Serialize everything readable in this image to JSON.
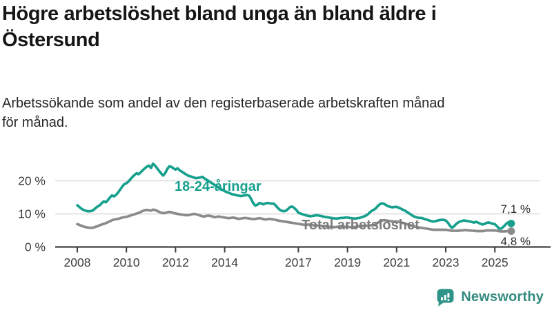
{
  "header": {
    "title": "Högre arbetslöshet bland unga än bland äldre i Östersund",
    "title_line1": "Högre arbetslöshet bland unga än bland äldre i",
    "title_line2": "Östersund",
    "subtitle_line1": "Arbetssökande som andel av den registerbaserade arbetskraften månad",
    "subtitle_line2": "för månad."
  },
  "chart_data": {
    "type": "line",
    "title": "Högre arbetslöshet bland unga än bland äldre i Östersund",
    "subtitle": "Arbetssökande som andel av den registerbaserade arbetskraften månad för månad.",
    "frequency": "monthly",
    "x_start": "2008-01",
    "x_end": "2025-09",
    "unit": "%",
    "ylim": [
      0,
      26
    ],
    "grid": "horizontal",
    "y_ticks": [
      0,
      10,
      20
    ],
    "y_tick_labels": [
      "0 %",
      "10 %",
      "20 %"
    ],
    "x_tick_years": [
      2008,
      2010,
      2012,
      2014,
      2017,
      2019,
      2021,
      2023,
      2025
    ],
    "x_tick_labels": [
      "2008",
      "2010",
      "2012",
      "2014",
      "2017",
      "2019",
      "2021",
      "2023",
      "2025"
    ],
    "series": [
      {
        "name": "18-24-åringar",
        "color": "#17a08e",
        "end_label": "7,1 %",
        "last_value": 7.1,
        "values": [
          12.6,
          12.1,
          11.6,
          11.2,
          11.0,
          10.8,
          10.8,
          10.9,
          11.2,
          11.8,
          12.3,
          12.6,
          13.3,
          13.8,
          13.5,
          14.2,
          15.0,
          15.6,
          15.3,
          15.8,
          16.5,
          17.4,
          18.3,
          19.0,
          19.3,
          19.8,
          20.5,
          21.2,
          21.8,
          22.3,
          22.0,
          22.6,
          23.2,
          23.8,
          24.3,
          24.6,
          23.9,
          25.2,
          24.6,
          23.8,
          23.0,
          22.2,
          21.6,
          22.4,
          23.6,
          24.4,
          24.2,
          23.8,
          23.4,
          23.8,
          23.2,
          22.8,
          22.4,
          22.0,
          21.6,
          21.4,
          21.2,
          21.0,
          20.8,
          20.9,
          21.0,
          21.2,
          20.8,
          20.4,
          20.0,
          19.6,
          19.2,
          18.8,
          18.4,
          18.0,
          17.6,
          17.2,
          16.9,
          16.6,
          16.4,
          16.1,
          15.9,
          15.8,
          15.6,
          15.5,
          15.4,
          15.5,
          15.6,
          15.7,
          15.5,
          14.4,
          13.2,
          12.5,
          12.8,
          13.3,
          13.1,
          12.9,
          13.2,
          13.3,
          13.2,
          13.1,
          13.1,
          12.5,
          11.8,
          11.2,
          10.9,
          10.8,
          11.0,
          11.5,
          12.1,
          12.2,
          11.8,
          11.2,
          10.4,
          10.1,
          9.9,
          9.7,
          9.5,
          9.4,
          9.3,
          9.4,
          9.5,
          9.6,
          9.5,
          9.4,
          9.2,
          9.1,
          9.0,
          8.9,
          8.8,
          8.7,
          8.6,
          8.6,
          8.7,
          8.8,
          8.8,
          8.9,
          8.9,
          8.8,
          8.7,
          8.6,
          8.6,
          8.7,
          8.8,
          9.0,
          9.2,
          9.5,
          9.9,
          10.5,
          11.0,
          11.3,
          11.8,
          12.5,
          13.0,
          13.2,
          13.0,
          12.6,
          12.3,
          12.1,
          12.0,
          12.1,
          12.1,
          11.9,
          11.6,
          11.3,
          11.0,
          10.6,
          10.2,
          9.8,
          9.4,
          9.1,
          8.9,
          8.8,
          8.8,
          8.6,
          8.4,
          8.2,
          8.0,
          7.8,
          7.7,
          7.8,
          8.0,
          8.1,
          8.2,
          8.2,
          8.0,
          7.4,
          6.5,
          5.8,
          6.2,
          6.9,
          7.4,
          7.7,
          7.9,
          8.0,
          7.9,
          7.8,
          7.7,
          7.5,
          7.4,
          7.6,
          7.3,
          7.0,
          6.8,
          7.0,
          7.3,
          7.4,
          7.2,
          7.0,
          6.9,
          6.3,
          5.6,
          5.5,
          6.0,
          6.6,
          7.3,
          7.5,
          7.1
        ]
      },
      {
        "name": "Total arbetslöshet",
        "color": "#8b8b8b",
        "label_color": "#7b7b7b",
        "end_label": "4,8 %",
        "last_value": 4.8,
        "values": [
          6.9,
          6.7,
          6.4,
          6.2,
          6.0,
          5.9,
          5.8,
          5.8,
          5.9,
          6.1,
          6.3,
          6.6,
          6.8,
          7.0,
          7.2,
          7.5,
          7.8,
          8.1,
          8.3,
          8.4,
          8.5,
          8.7,
          8.9,
          9.0,
          9.1,
          9.3,
          9.5,
          9.7,
          9.9,
          10.1,
          10.3,
          10.6,
          10.9,
          11.1,
          11.2,
          11.1,
          11.0,
          11.3,
          11.2,
          10.9,
          10.6,
          10.4,
          10.2,
          10.3,
          10.5,
          10.6,
          10.5,
          10.3,
          10.1,
          10.0,
          9.9,
          9.8,
          9.7,
          9.6,
          9.6,
          9.7,
          9.9,
          10.0,
          9.9,
          9.7,
          9.5,
          9.3,
          9.2,
          9.4,
          9.5,
          9.4,
          9.2,
          9.0,
          9.1,
          9.2,
          9.1,
          9.0,
          8.9,
          8.8,
          8.7,
          8.8,
          8.9,
          8.8,
          8.6,
          8.5,
          8.6,
          8.7,
          8.8,
          8.7,
          8.6,
          8.5,
          8.4,
          8.5,
          8.6,
          8.7,
          8.6,
          8.4,
          8.3,
          8.4,
          8.5,
          8.4,
          8.3,
          8.2,
          8.0,
          7.9,
          7.8,
          7.7,
          7.6,
          7.5,
          7.4,
          7.3,
          7.2,
          7.1,
          7.0,
          6.9,
          6.8,
          6.7,
          6.7,
          6.8,
          6.7,
          6.6,
          6.5,
          6.5,
          6.4,
          6.4,
          6.3,
          6.3,
          6.2,
          6.1,
          6.1,
          6.0,
          6.0,
          6.1,
          6.1,
          6.2,
          6.1,
          6.1,
          6.1,
          6.0,
          6.0,
          6.0,
          6.1,
          6.2,
          6.2,
          6.3,
          6.3,
          6.4,
          6.4,
          6.5,
          6.6,
          6.6,
          6.9,
          7.4,
          7.8,
          8.0,
          8.1,
          8.0,
          7.9,
          7.8,
          7.7,
          7.7,
          7.7,
          7.6,
          7.5,
          7.3,
          7.1,
          6.9,
          6.7,
          6.5,
          6.3,
          6.1,
          6.0,
          5.9,
          5.8,
          5.7,
          5.6,
          5.5,
          5.4,
          5.3,
          5.2,
          5.2,
          5.2,
          5.2,
          5.2,
          5.2,
          5.2,
          5.1,
          5.0,
          4.9,
          4.9,
          4.9,
          4.9,
          5.0,
          5.0,
          5.1,
          5.1,
          5.0,
          5.0,
          4.9,
          4.9,
          4.8,
          4.8,
          4.8,
          4.8,
          4.9,
          5.0,
          5.0,
          5.0,
          5.0,
          5.0,
          4.9,
          4.8,
          4.7,
          4.7,
          4.7,
          4.8,
          4.9,
          4.8
        ]
      }
    ]
  },
  "footer": {
    "brand": "Newsworthy",
    "logo_icon": "newsworthy-bar-chart-bubble-icon"
  },
  "colors": {
    "accent_teal": "#17a08e",
    "line_gray": "#8b8b8b",
    "grid": "#dadada",
    "axis": "#3f3f3f",
    "text_dark": "#161616"
  }
}
